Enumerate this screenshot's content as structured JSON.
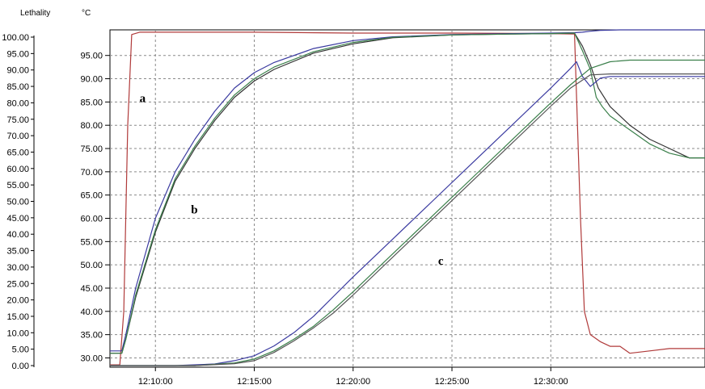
{
  "chart_data": {
    "type": "line",
    "title": "",
    "y_left_title": "Lethality",
    "y_right_title": "°C",
    "xlabel": "",
    "x_ticks": [
      "12:10:00",
      "12:15:00",
      "12:20:00",
      "12:25:00",
      "12:30:00"
    ],
    "x_range_minutes": [
      7.7,
      37.8
    ],
    "lethality_ticks": [
      "100.00",
      "95.00",
      "90.00",
      "85.00",
      "80.00",
      "75.00",
      "70.00",
      "65.00",
      "60.00",
      "55.00",
      "50.00",
      "45.00",
      "40.00",
      "35.00",
      "30.00",
      "25.00",
      "20.00",
      "15.00",
      "10.00",
      "5.00",
      "0.00"
    ],
    "lethality_range": [
      0,
      100
    ],
    "temp_ticks": [
      "95.00",
      "90.00",
      "85.00",
      "80.00",
      "75.00",
      "70.00",
      "65.00",
      "60.00",
      "55.00",
      "50.00",
      "45.00",
      "40.00",
      "35.00",
      "30.00"
    ],
    "temp_range": [
      28,
      100.5
    ],
    "grid": true,
    "curve_labels": [
      "a",
      "b",
      "c"
    ],
    "series": [
      {
        "color": "#b03a3a",
        "axis": "temp",
        "x": [
          7.7,
          8.2,
          8.4,
          8.6,
          8.8,
          9.2,
          10,
          15,
          20,
          25,
          30,
          31.2,
          31.5,
          31.7,
          32,
          32.5,
          33,
          33.5,
          34,
          35,
          36,
          37,
          37.8
        ],
        "y": [
          28.5,
          28.5,
          40,
          80,
          99.5,
          100,
          100,
          100,
          99.8,
          99.8,
          99.7,
          99.6,
          60,
          40,
          35,
          33.5,
          32.5,
          32.5,
          31,
          31.5,
          32,
          32,
          32
        ]
      },
      {
        "color": "#3a3aa0",
        "axis": "temp",
        "x": [
          7.7,
          8.3,
          8.5,
          9,
          10,
          11,
          12,
          13,
          14,
          15,
          16,
          18,
          20,
          22,
          25,
          28,
          30,
          31.2,
          31.6,
          32,
          32.5,
          33.5,
          34.5,
          35.5,
          36.5,
          37.8
        ],
        "y": [
          31.5,
          31.5,
          35,
          45,
          60,
          70,
          77,
          83,
          88,
          91.3,
          93.5,
          96.5,
          98.2,
          99,
          99.5,
          99.7,
          99.8,
          99.9,
          100,
          100.2,
          100.4,
          100.5,
          100.5,
          100.5,
          100.5,
          100.5
        ]
      },
      {
        "color": "#333333",
        "axis": "temp",
        "x": [
          7.7,
          8.3,
          8.5,
          9,
          10,
          11,
          12,
          13,
          14,
          15,
          16,
          18,
          20,
          22,
          25,
          28,
          30,
          31.2,
          31.6,
          32,
          32.4,
          33,
          34,
          35,
          36,
          37,
          37.8
        ],
        "y": [
          31,
          31,
          34,
          43,
          57,
          68,
          75,
          81,
          86,
          89.5,
          92,
          95.5,
          97.5,
          98.8,
          99.4,
          99.6,
          99.7,
          99.8,
          97,
          93,
          88,
          84,
          80,
          77,
          75,
          73,
          73
        ]
      },
      {
        "color": "#3a7f4a",
        "axis": "temp",
        "x": [
          7.7,
          8.3,
          8.5,
          9,
          10,
          11,
          12,
          13,
          14,
          15,
          16,
          18,
          20,
          22,
          25,
          28,
          30,
          31.2,
          31.6,
          32,
          32.3,
          32.6,
          33,
          34,
          35,
          36,
          37,
          37.8
        ],
        "y": [
          31,
          31,
          34,
          43.5,
          57.5,
          68.5,
          75.5,
          81.5,
          86.5,
          90,
          92.5,
          95.8,
          97.8,
          98.9,
          99.4,
          99.6,
          99.7,
          99.8,
          96,
          92,
          86,
          84,
          82,
          79,
          76,
          74,
          73,
          73
        ]
      },
      {
        "color": "#3a3aa0",
        "axis": "lethality",
        "x": [
          7.7,
          11,
          13,
          14,
          15,
          16,
          17,
          18,
          19,
          20,
          22,
          24,
          26,
          28,
          30,
          31,
          31.3,
          31.6,
          32,
          32.5,
          33,
          34,
          35,
          36,
          37,
          37.8
        ],
        "y": [
          0,
          0,
          0.5,
          1.5,
          3,
          6,
          10,
          15,
          21,
          27,
          38.5,
          50,
          61.5,
          73,
          84.5,
          90.5,
          92.5,
          88,
          85,
          87.5,
          88,
          88,
          88,
          88,
          88,
          88
        ]
      },
      {
        "color": "#3a7f4a",
        "axis": "lethality",
        "x": [
          7.7,
          12,
          14,
          15,
          16,
          17,
          18,
          19,
          20,
          22,
          24,
          26,
          28,
          30,
          31,
          32,
          33,
          34,
          35,
          36,
          37,
          37.8
        ],
        "y": [
          0,
          0,
          0.8,
          2,
          4.5,
          8,
          12,
          17,
          22.5,
          34,
          45.5,
          57,
          68.5,
          80,
          85.5,
          90.5,
          92.5,
          93,
          93,
          93,
          93,
          93
        ]
      },
      {
        "color": "#555555",
        "axis": "lethality",
        "x": [
          7.7,
          12,
          14,
          15,
          16,
          17,
          18,
          19,
          20,
          22,
          24,
          26,
          28,
          30,
          31,
          32,
          33,
          34,
          35,
          36,
          37,
          37.8
        ],
        "y": [
          0,
          0,
          0.6,
          1.5,
          4,
          7.5,
          11.5,
          16,
          21.5,
          33,
          44.5,
          56,
          67.5,
          79,
          84.5,
          88.5,
          88.8,
          88.8,
          88.8,
          88.8,
          88.8,
          88.8
        ]
      }
    ],
    "annotations": [
      {
        "text": "a",
        "x": 9.2,
        "y_temp": 85
      },
      {
        "text": "b",
        "x": 11.8,
        "y_temp": 61
      },
      {
        "text": "c",
        "x": 24.3,
        "y_temp": 50
      }
    ]
  }
}
